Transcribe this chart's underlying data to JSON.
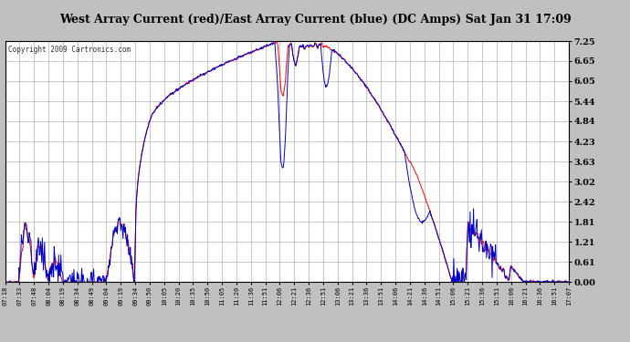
{
  "title": "West Array Current (red)/East Array Current (blue) (DC Amps) Sat Jan 31 17:09",
  "copyright": "Copyright 2009 Cartronics.com",
  "yticks": [
    0.0,
    0.61,
    1.21,
    1.81,
    2.42,
    3.02,
    3.63,
    4.23,
    4.84,
    5.44,
    6.05,
    6.65,
    7.25
  ],
  "ylim": [
    0.0,
    7.25
  ],
  "background_color": "#c0c0c0",
  "plot_bg_color": "#ffffff",
  "grid_color": "#b0b0b0",
  "red_color": "#ff0000",
  "blue_color": "#0000cc",
  "title_bg": "#d8d8d8",
  "xtick_labels": [
    "07:18",
    "07:33",
    "07:48",
    "08:04",
    "08:19",
    "08:34",
    "08:49",
    "09:04",
    "09:19",
    "09:34",
    "09:50",
    "10:05",
    "10:20",
    "10:35",
    "10:50",
    "11:05",
    "11:20",
    "11:36",
    "11:51",
    "12:06",
    "12:21",
    "12:36",
    "12:51",
    "13:06",
    "13:21",
    "13:36",
    "13:51",
    "14:06",
    "14:21",
    "14:36",
    "14:51",
    "15:06",
    "15:21",
    "15:36",
    "15:51",
    "16:06",
    "16:21",
    "16:36",
    "16:51",
    "17:07"
  ]
}
